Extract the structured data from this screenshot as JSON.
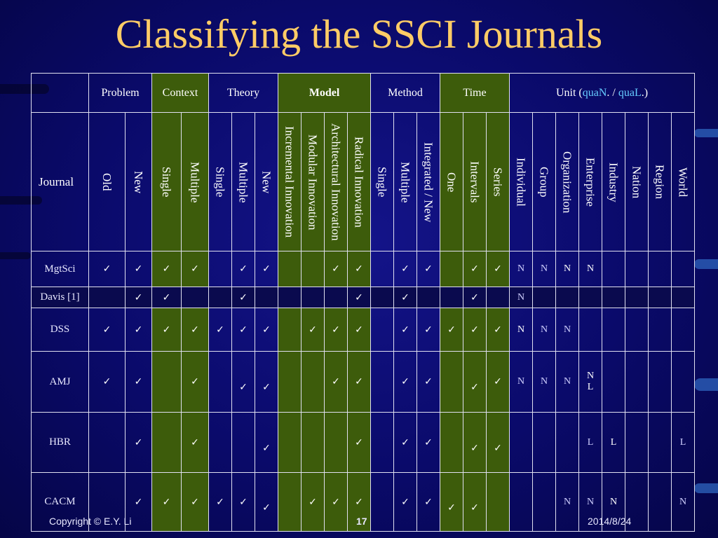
{
  "slide": {
    "title": "Classifying the SSCI Journals",
    "footer_left": "Copyright © E.Y. Li",
    "footer_center": "17",
    "footer_right": "2014/8/24"
  },
  "table": {
    "journal_label": "Journal",
    "groups": {
      "problem": "Problem",
      "context": "Context",
      "theory": "Theory",
      "model": "Model",
      "method": "Method",
      "time": "Time",
      "unit_prefix": "Unit (",
      "unit_quan": "quaN",
      "unit_sep": ". / ",
      "unit_qual": "quaL",
      "unit_suffix": ".)"
    },
    "columns": [
      "Old",
      "New",
      "Single",
      "Multiple",
      "Single",
      "Multiple",
      "New",
      "Incremental Innovation",
      "Modular Innovation",
      "Architectural Innovation",
      "Radical Innovation",
      "Single",
      "Multiple",
      "Integrated / New",
      "One",
      "Intervals",
      "Series",
      "Individual",
      "Group",
      "Organization",
      "Enterprise",
      "Industry",
      "Nation",
      "Region",
      "World"
    ],
    "rows": [
      {
        "journal": "MgtSci",
        "cells": [
          "✓",
          "✓",
          "✓",
          "✓",
          "",
          "✓",
          "✓",
          "",
          "",
          "✓",
          "✓",
          "",
          "✓",
          "✓",
          "",
          "✓",
          "✓",
          "N",
          "N",
          "N",
          "N",
          "",
          "",
          "",
          ""
        ]
      },
      {
        "journal": "Davis [1]",
        "cells": [
          "",
          "✓",
          "✓",
          "",
          "",
          "✓",
          "",
          "",
          "",
          "",
          "✓",
          "",
          "✓",
          "",
          "",
          "✓",
          "",
          "N",
          "",
          "",
          "",
          "",
          "",
          "",
          ""
        ]
      },
      {
        "journal": "DSS",
        "cells": [
          "✓",
          "✓",
          "✓",
          "✓",
          "✓",
          "✓",
          "✓",
          "",
          "✓",
          "✓",
          "✓",
          "",
          "✓",
          "✓",
          "✓",
          "✓",
          "✓",
          "N",
          "N",
          "N",
          "",
          "",
          "",
          "",
          ""
        ]
      },
      {
        "journal": "AMJ",
        "cells": [
          "✓",
          "✓",
          "",
          "✓",
          "",
          "✓",
          "✓",
          "",
          "",
          "✓",
          "✓",
          "",
          "✓",
          "✓",
          "",
          "✓",
          "✓",
          "N",
          "N",
          "N",
          "N L",
          "",
          "",
          "",
          ""
        ]
      },
      {
        "journal": "HBR",
        "cells": [
          "",
          "✓",
          "",
          "✓",
          "",
          "",
          "✓",
          "",
          "",
          "",
          "✓",
          "",
          "✓",
          "✓",
          "",
          "✓",
          "✓",
          "",
          "",
          "",
          "L",
          "L",
          "",
          "",
          "L"
        ]
      },
      {
        "journal": "CACM",
        "cells": [
          "",
          "✓",
          "✓",
          "✓",
          "✓",
          "✓",
          "✓",
          "",
          "✓",
          "✓",
          "✓",
          "",
          "✓",
          "✓",
          "✓",
          "✓",
          "",
          "",
          "",
          "N",
          "N",
          "N",
          "",
          "",
          "N"
        ]
      }
    ]
  }
}
